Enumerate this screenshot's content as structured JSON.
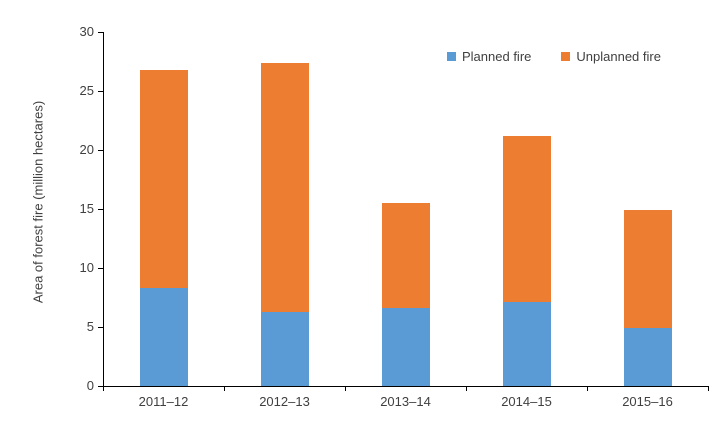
{
  "chart_data": {
    "type": "bar",
    "stacked": true,
    "title": "",
    "xlabel": "",
    "ylabel": "Area of forest fire (million hectares)",
    "categories": [
      "2011–12",
      "2012–13",
      "2013–14",
      "2014–15",
      "2015–16"
    ],
    "series": [
      {
        "name": "Planned fire",
        "color": "#5B9BD5",
        "values": [
          8.3,
          6.3,
          6.6,
          7.1,
          4.9
        ]
      },
      {
        "name": "Unplanned fire",
        "color": "#ED7D31",
        "values": [
          18.5,
          21.1,
          8.9,
          14.1,
          10.0
        ]
      }
    ],
    "ylim": [
      0,
      30
    ],
    "yticks": [
      0,
      5,
      10,
      15,
      20,
      25,
      30
    ],
    "grid": false,
    "legend_position": "top-right"
  },
  "colors": {
    "axis": "#000000",
    "text": "#404040",
    "background": "#FFFFFF",
    "planned": "#5B9BD5",
    "unplanned": "#ED7D31"
  }
}
